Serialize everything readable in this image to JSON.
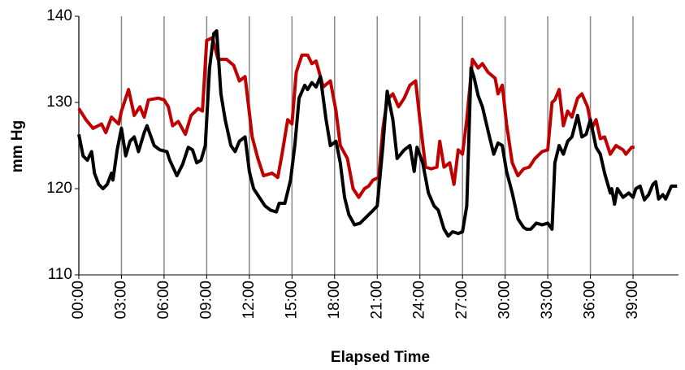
{
  "chart_data": {
    "type": "line",
    "y_label": "mm Hg",
    "x_label": "Elapsed Time",
    "xlim": [
      0,
      42.2
    ],
    "xticks": [
      {
        "value": 0,
        "label": "00:00"
      },
      {
        "value": 3,
        "label": "03:00"
      },
      {
        "value": 6,
        "label": "06:00"
      },
      {
        "value": 9,
        "label": "09:00"
      },
      {
        "value": 12,
        "label": "12:00"
      },
      {
        "value": 15,
        "label": "15:00"
      },
      {
        "value": 18,
        "label": "18:00"
      },
      {
        "value": 21,
        "label": "21:00"
      },
      {
        "value": 24,
        "label": "24:00"
      },
      {
        "value": 27,
        "label": "27:00"
      },
      {
        "value": 30,
        "label": "30:00"
      },
      {
        "value": 33,
        "label": "33:00"
      },
      {
        "value": 36,
        "label": "36:00"
      },
      {
        "value": 39,
        "label": "39:00"
      }
    ],
    "ylim": [
      110,
      140
    ],
    "yticks": [
      110,
      120,
      130,
      140
    ],
    "grid": true,
    "series": [
      {
        "color": "#c00000",
        "x": [
          0,
          0.5,
          1,
          1.6,
          1.9,
          2.3,
          2.8,
          3,
          3.5,
          3.9,
          4.3,
          4.6,
          4.9,
          5.6,
          6,
          6.3,
          6.6,
          7,
          7.5,
          7.9,
          8.4,
          8.7,
          9,
          9.4,
          9.8,
          10.4,
          10.9,
          11.3,
          11.7,
          12.2,
          12.6,
          13,
          13.6,
          14,
          14.3,
          14.7,
          15,
          15.3,
          15.7,
          16.1,
          16.4,
          16.7,
          17.2,
          17.7,
          18.1,
          18.4,
          18.9,
          19.3,
          19.7,
          20.1,
          20.4,
          20.7,
          21.1,
          21.4,
          21.7,
          22.1,
          22.5,
          22.9,
          23.3,
          23.7,
          24,
          24.4,
          24.8,
          25.2,
          25.4,
          25.7,
          26.1,
          26.4,
          26.7,
          27,
          27.3,
          27.7,
          28.1,
          28.4,
          28.8,
          29.3,
          29.5,
          29.8,
          30.1,
          30.5,
          30.9,
          31.3,
          31.7,
          32.1,
          32.6,
          33,
          33.3,
          33.5,
          33.8,
          34.1,
          34.4,
          34.7,
          35.1,
          35.4,
          35.8,
          36.1,
          36.4,
          36.7,
          37,
          37.4,
          37.8,
          38.3,
          38.5,
          38.9,
          39.1
        ],
        "values": [
          129.3,
          128,
          127,
          127.5,
          126.5,
          128.3,
          127.5,
          129,
          131.5,
          128.5,
          129.5,
          128.3,
          130.3,
          130.5,
          130.3,
          129.5,
          127.3,
          127.8,
          126.3,
          128.5,
          129.3,
          129,
          137.2,
          137.5,
          135,
          135,
          134.3,
          132.5,
          133,
          126,
          123.5,
          121.5,
          121.8,
          121.3,
          124,
          128,
          127.5,
          133.5,
          135.5,
          135.5,
          134.5,
          134.8,
          131.8,
          132.5,
          129,
          125,
          123.5,
          120,
          119,
          120,
          120.3,
          121,
          121.3,
          127,
          130.3,
          131,
          129.5,
          130.5,
          132,
          132.5,
          128,
          122.5,
          122.3,
          122.5,
          125.5,
          122.5,
          123,
          120.5,
          124.5,
          124,
          128,
          135,
          134,
          134.5,
          133.5,
          132.8,
          131,
          132,
          127.5,
          123,
          121.5,
          122.3,
          122.5,
          123.5,
          124.3,
          124.5,
          130,
          130.3,
          131.5,
          127.3,
          129,
          128.3,
          130.5,
          131,
          129.5,
          127,
          128,
          125.8,
          126,
          124,
          125,
          124.5,
          124,
          124.8,
          124.8
        ]
      },
      {
        "color": "#000000",
        "x": [
          0,
          0.3,
          0.6,
          0.9,
          1.1,
          1.4,
          1.7,
          2,
          2.3,
          2.4,
          2.7,
          3,
          3.3,
          3.6,
          3.9,
          4.2,
          4.6,
          4.8,
          5.3,
          5.7,
          6.2,
          6.4,
          6.9,
          7.3,
          7.7,
          8,
          8.3,
          8.6,
          8.9,
          9.2,
          9.5,
          9.7,
          10,
          10.3,
          10.7,
          11,
          11.3,
          11.7,
          12,
          12.3,
          12.7,
          13.1,
          13.5,
          13.9,
          14.1,
          14.5,
          14.9,
          15.2,
          15.5,
          15.9,
          16.1,
          16.4,
          16.7,
          17,
          17.4,
          17.7,
          18.1,
          18.4,
          18.7,
          19,
          19.4,
          19.8,
          20.1,
          20.6,
          21,
          21.4,
          21.7,
          22.1,
          22.4,
          22.9,
          23.3,
          23.6,
          23.8,
          24.2,
          24.6,
          25,
          25.3,
          25.7,
          26,
          26.3,
          26.7,
          27,
          27.3,
          27.6,
          27.8,
          28.1,
          28.4,
          28.9,
          29.2,
          29.5,
          29.8,
          30.1,
          30.5,
          30.9,
          31.3,
          31.5,
          31.8,
          32.2,
          32.6,
          33,
          33.3,
          33.5,
          33.8,
          34.1,
          34.4,
          34.7,
          35.1,
          35.4,
          35.7,
          36,
          36.4,
          36.7,
          37,
          37.4,
          37.5,
          37.7,
          37.9,
          38.3,
          38.7,
          39,
          39.2,
          39.5,
          39.8,
          40.1,
          40.4,
          40.6,
          40.8,
          41.1,
          41.3,
          41.7,
          42.1
        ],
        "values": [
          126.3,
          123.8,
          123.3,
          124.3,
          121.8,
          120.5,
          120,
          120.5,
          121.8,
          121,
          124.5,
          127,
          123.8,
          125.5,
          126,
          124.3,
          126.5,
          127.3,
          125,
          124.5,
          124.3,
          123.3,
          121.5,
          122.8,
          124.8,
          124.5,
          123,
          123.3,
          125,
          134,
          138,
          138.3,
          131,
          128,
          125,
          124.3,
          125.5,
          126,
          122,
          120,
          119,
          118,
          117.5,
          117.3,
          118.3,
          118.3,
          121,
          125,
          130.5,
          132,
          131.5,
          132.3,
          131.8,
          133,
          128,
          125,
          125.5,
          123,
          119,
          117,
          115.8,
          116,
          116.5,
          117.3,
          118,
          125,
          131.3,
          128,
          123.5,
          124.5,
          125,
          122,
          124.8,
          123,
          119.5,
          118,
          117.5,
          115.3,
          114.5,
          115,
          114.8,
          115,
          118,
          134,
          133,
          130.8,
          129.5,
          126,
          124,
          125.3,
          125,
          122,
          119.5,
          116.5,
          115.5,
          115.3,
          115.3,
          116,
          115.8,
          116,
          115.3,
          123,
          125,
          124,
          125.5,
          126,
          128.5,
          126,
          126.3,
          128,
          124.8,
          124,
          121.8,
          119.5,
          120,
          118.2,
          120,
          119,
          119.5,
          119,
          120,
          120.3,
          118.7,
          119.3,
          120.5,
          120.8,
          118.8,
          119.3,
          118.8,
          120.3,
          120.3
        ]
      }
    ]
  }
}
